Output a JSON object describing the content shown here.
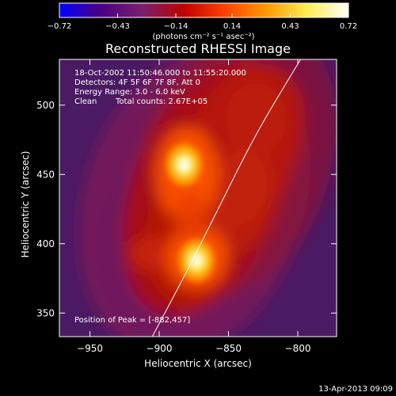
{
  "chart_data": {
    "type": "heatmap",
    "title": "Reconstructed RHESSI Image",
    "xlabel": "Heliocentric X (arcsec)",
    "ylabel": "Heliocentric Y (arcsec)",
    "xlim": [
      -972,
      -772
    ],
    "ylim": [
      333,
      533
    ],
    "x_ticks": [
      -950,
      -900,
      -850,
      -800
    ],
    "y_ticks": [
      350,
      400,
      450,
      500
    ],
    "x_tick_labels": [
      "−950",
      "−900",
      "−850",
      "−800"
    ],
    "y_tick_labels": [
      "350",
      "400",
      "450",
      "500"
    ],
    "colorbar": {
      "range": [
        -0.72,
        0.72
      ],
      "ticks": [
        -0.72,
        -0.43,
        -0.14,
        0.14,
        0.43,
        0.72
      ],
      "tick_labels": [
        "−0.72",
        "−0.43",
        "−0.14",
        "0.14",
        "0.43",
        "0.72"
      ],
      "unit_label": "(photons cm⁻² s⁻¹ asec⁻²)",
      "colormap": "rhessi_heat",
      "stops": [
        "#0000ff",
        "#4b0082",
        "#7a1f6e",
        "#c00000",
        "#ff4000",
        "#ff9900",
        "#ffee55",
        "#ffffff"
      ]
    },
    "sources": [
      {
        "x": -882,
        "y": 457,
        "value": 0.72
      },
      {
        "x": -873,
        "y": 388,
        "value": 0.64
      }
    ],
    "limb_curve": [
      [
        -905,
        333
      ],
      [
        -880,
        380
      ],
      [
        -855,
        430
      ],
      [
        -830,
        480
      ],
      [
        -798,
        533
      ]
    ],
    "annotations": {
      "time_range": "18-Oct-2002 11:50:46.000 to 11:55:20.000",
      "detectors": "Detectors: 4F 5F 6F 7F 8F, Att 0",
      "energy": "Energy Range: 3.0 - 6.0 keV",
      "clean": "Clean",
      "counts": "Total counts: 2.67E+05",
      "peak": "Position of Peak = [-882,457]"
    },
    "timestamp": "13-Apr-2013 09:09"
  }
}
